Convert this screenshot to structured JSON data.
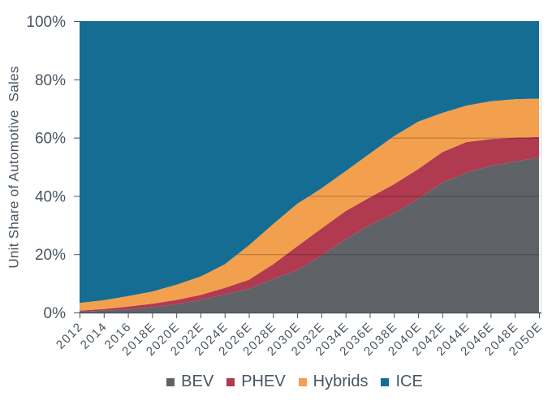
{
  "chart_data": {
    "type": "area",
    "stacked": true,
    "unit": "percent-share",
    "title": "",
    "xlabel": "",
    "ylabel": "Unit Share of Automotive  Sales",
    "ylim": [
      0,
      100
    ],
    "ytick_labels": [
      "0%",
      "20%",
      "40%",
      "60%",
      "80%",
      "100%"
    ],
    "grid_y_values": [
      20,
      40,
      60,
      80
    ],
    "legend_position": "bottom",
    "categories": [
      "2012",
      "2014",
      "2016",
      "2018E",
      "2020E",
      "2022E",
      "2024E",
      "2026E",
      "2028E",
      "2030E",
      "2032E",
      "2034E",
      "2036E",
      "2038E",
      "2040E",
      "2042E",
      "2044E",
      "2046E",
      "2048E",
      "2050E"
    ],
    "series": [
      {
        "name": "BEV",
        "color": "#5f6368",
        "values": [
          0.3,
          0.6,
          1.1,
          1.8,
          2.8,
          4.3,
          6.2,
          8.2,
          11.5,
          14.5,
          19.5,
          25.1,
          30.0,
          34.0,
          39.0,
          44.5,
          48.0,
          50.3,
          51.8,
          53.2
        ]
      },
      {
        "name": "PHEV",
        "color": "#b03a50",
        "values": [
          0.3,
          0.6,
          0.9,
          1.2,
          1.5,
          1.7,
          2.2,
          3.0,
          5.0,
          8.2,
          9.3,
          9.7,
          9.5,
          10.0,
          10.2,
          10.5,
          10.5,
          9.2,
          8.2,
          7.0
        ]
      },
      {
        "name": "Hybrids",
        "color": "#f2a04d",
        "values": [
          2.7,
          3.0,
          3.6,
          4.2,
          5.2,
          6.3,
          8.1,
          11.8,
          13.8,
          14.6,
          13.8,
          13.7,
          15.0,
          16.5,
          16.3,
          13.5,
          12.5,
          13.0,
          13.2,
          13.2
        ]
      },
      {
        "name": "ICE",
        "color": "#156d93",
        "values": [
          96.7,
          95.8,
          94.4,
          92.8,
          90.5,
          87.7,
          83.5,
          77.0,
          69.7,
          62.7,
          57.4,
          51.5,
          45.5,
          39.5,
          34.5,
          31.5,
          29.0,
          27.5,
          26.8,
          26.6
        ]
      }
    ]
  },
  "axis": {
    "text_color": "#4a5560",
    "line_color": "#4a5560",
    "grid_color": "rgba(0,0,0,0.28)",
    "plot_right_border_color": "#d9d9d9"
  }
}
